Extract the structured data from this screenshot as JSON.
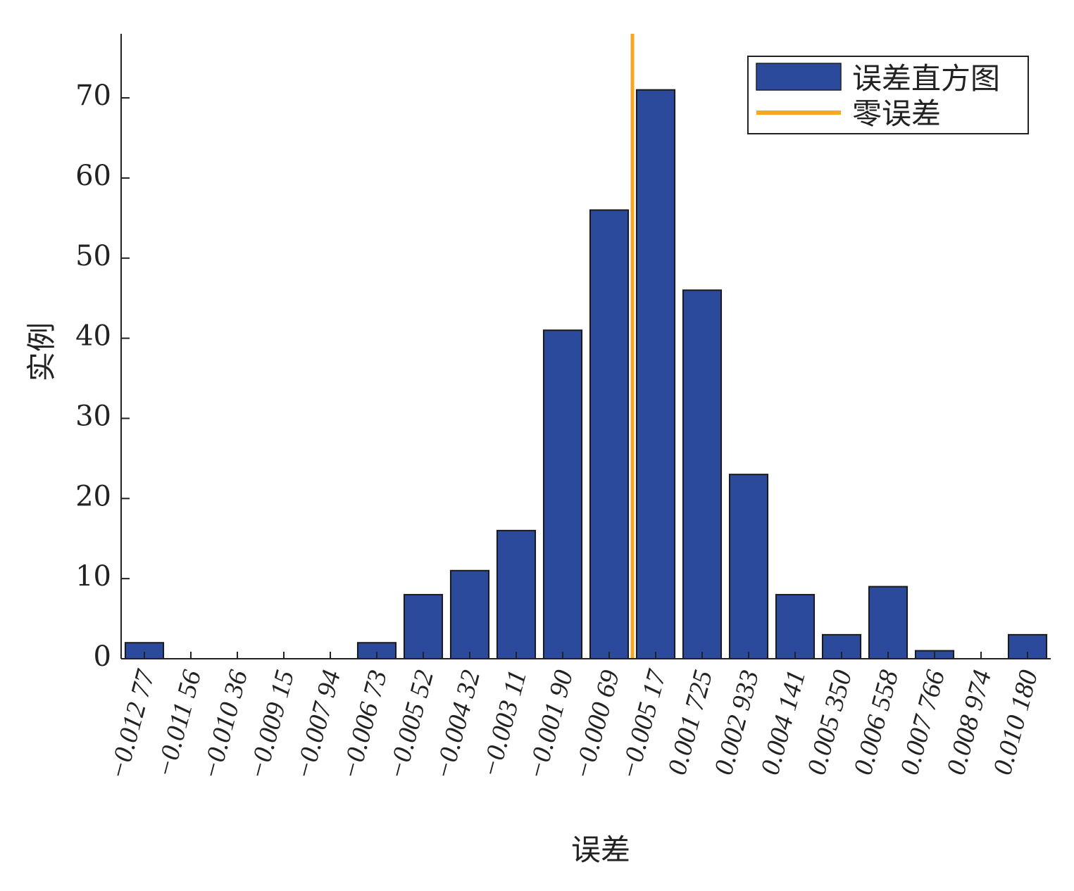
{
  "chart_data": {
    "type": "bar",
    "title": "",
    "xlabel": "误差",
    "ylabel": "实例",
    "categories": [
      "−0.012 77",
      "−0.011 56",
      "−0.010 36",
      "−0.009 15",
      "−0.007 94",
      "−0.006 73",
      "−0.005 52",
      "−0.004 32",
      "−0.003 11",
      "−0.001 90",
      "−0.000 69",
      "−0.005 17",
      "0.001 725",
      "0.002 933",
      "0.004 141",
      "0.005 350",
      "0.006 558",
      "0.007 766",
      "0.008 974",
      "0.010 180"
    ],
    "series": [
      {
        "name": "误差直方图",
        "values": [
          2,
          0,
          0,
          0,
          0,
          2,
          8,
          11,
          16,
          41,
          56,
          71,
          46,
          23,
          8,
          3,
          9,
          1,
          0,
          3
        ],
        "color": "#2b4a9c"
      }
    ],
    "zero_error_line": {
      "name": "零误差",
      "position_between_categories": [
        10,
        11
      ],
      "color": "#f5a623"
    },
    "ylim": [
      0,
      78
    ],
    "yticks": [
      0,
      10,
      20,
      30,
      40,
      50,
      60,
      70
    ],
    "grid": false,
    "legend_position": "top-right"
  }
}
